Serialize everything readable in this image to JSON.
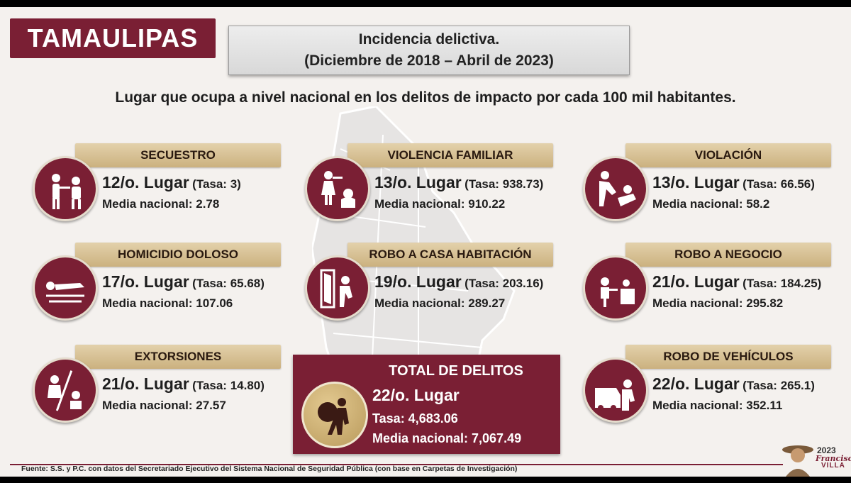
{
  "state": "TAMAULIPAS",
  "title": {
    "line1": "Incidencia delictiva.",
    "line2": "(Diciembre de 2018 – Abril de 2023)"
  },
  "subtitle": "Lugar que ocupa a nivel nacional en los delitos de impacto por cada 100 mil habitantes.",
  "colors": {
    "accent": "#7a1f34",
    "gold": "#cbb17f",
    "background": "#f4f1ee"
  },
  "crimes": {
    "secuestro": {
      "label": "SECUESTRO",
      "rank": "12/o. Lugar",
      "tasa": "(Tasa: 3)",
      "media": "Media nacional:  2.78",
      "icon": "kidnapping-icon"
    },
    "violencia_familiar": {
      "label": "VIOLENCIA FAMILIAR",
      "rank": "13/o. Lugar",
      "tasa": "(Tasa: 938.73)",
      "media": "Media nacional:  910.22",
      "icon": "family-violence-icon"
    },
    "violacion": {
      "label": "VIOLACIÓN",
      "rank": "13/o. Lugar",
      "tasa": "(Tasa: 66.56)",
      "media": "Media nacional: 58.2",
      "icon": "assault-icon"
    },
    "homicidio": {
      "label": "HOMICIDIO DOLOSO",
      "rank": "17/o. Lugar",
      "tasa": "(Tasa: 65.68)",
      "media": "Media nacional: 107.06",
      "icon": "homicide-icon"
    },
    "robo_casa": {
      "label": "ROBO A CASA HABITACIÓN",
      "rank": "19/o. Lugar",
      "tasa": "(Tasa: 203.16)",
      "media": "Media nacional: 289.27",
      "icon": "burglary-icon"
    },
    "robo_negocio": {
      "label": "ROBO A NEGOCIO",
      "rank": "21/o. Lugar",
      "tasa": "(Tasa: 184.25)",
      "media": "Media nacional: 295.82",
      "icon": "store-robbery-icon"
    },
    "extorsiones": {
      "label": "EXTORSIONES",
      "rank": "21/o. Lugar",
      "tasa": "(Tasa: 14.80)",
      "media": "Media nacional: 27.57",
      "icon": "extortion-icon"
    },
    "robo_vehiculos": {
      "label": "ROBO DE VEHÍCULOS",
      "rank": "22/o. Lugar",
      "tasa": "(Tasa: 265.1)",
      "media": "Media nacional:  352.11",
      "icon": "car-theft-icon"
    }
  },
  "total": {
    "label": "TOTAL DE DELITOS",
    "rank": "22/o. Lugar",
    "tasa": "Tasa: 4,683.06",
    "media": "Media nacional: 7,067.49",
    "icon": "thief-icon"
  },
  "footer": "Fuente: S.S. y P.C. con datos del Secretariado Ejecutivo del Sistema Nacional de Seguridad Pública (con base en Carpetas de Investigación)",
  "logo": {
    "year": "2023",
    "name": "Francisco",
    "name2": "VILLA"
  }
}
